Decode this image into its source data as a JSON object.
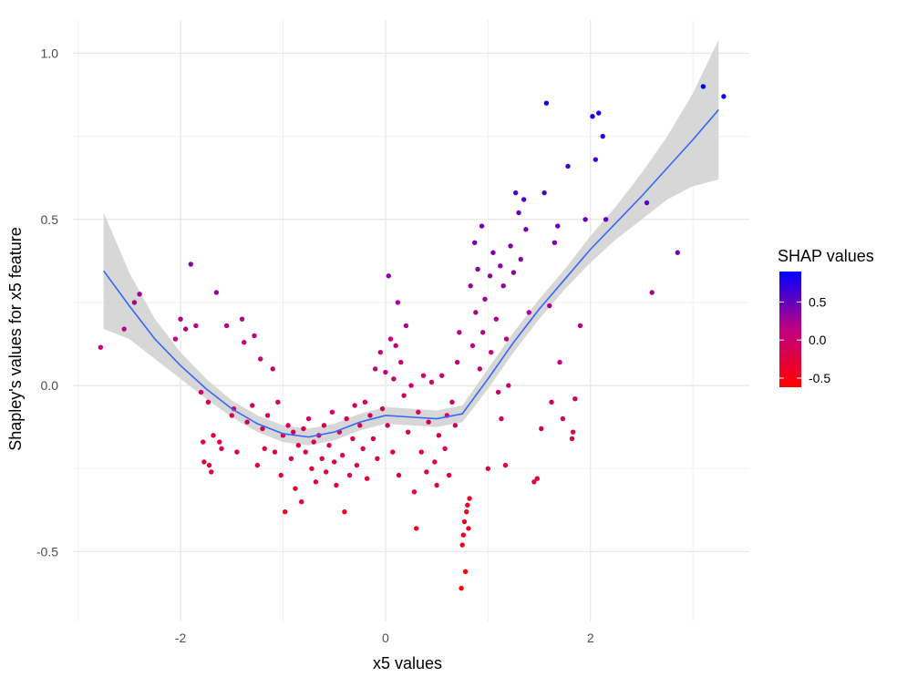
{
  "chart_data": {
    "type": "scatter",
    "xlabel": "x5 values",
    "ylabel": "Shapley's values for x5 feature",
    "xlim": [
      -3.05,
      3.55
    ],
    "ylim": [
      -0.71,
      1.1
    ],
    "x_ticks": [
      -2,
      0,
      2
    ],
    "x_tick_labels": [
      "-2",
      "0",
      "2"
    ],
    "y_ticks": [
      -0.5,
      0.0,
      0.5,
      1.0
    ],
    "y_tick_labels": [
      "-0.5",
      "0.0",
      "0.5",
      "1.0"
    ],
    "grid": true,
    "legend": {
      "title": "SHAP values",
      "placement": "right",
      "ticks": [
        0.5,
        0.0,
        -0.5
      ],
      "tick_labels": [
        "0.5",
        "0.0",
        "-0.5"
      ],
      "range": [
        -0.62,
        0.9
      ],
      "color_low": "#ff0000",
      "color_mid": "#c00080",
      "color_high": "#0000ff"
    },
    "smooth_color": "#3366ff",
    "band_color": "#d3d3d3",
    "smooth": [
      {
        "x": -2.75,
        "y": 0.345,
        "lo": 0.17,
        "hi": 0.52
      },
      {
        "x": -2.5,
        "y": 0.24,
        "lo": 0.14,
        "hi": 0.34
      },
      {
        "x": -2.25,
        "y": 0.14,
        "lo": 0.08,
        "hi": 0.2
      },
      {
        "x": -2.0,
        "y": 0.06,
        "lo": 0.02,
        "hi": 0.1
      },
      {
        "x": -1.75,
        "y": -0.01,
        "lo": -0.04,
        "hi": 0.02
      },
      {
        "x": -1.5,
        "y": -0.07,
        "lo": -0.095,
        "hi": -0.045
      },
      {
        "x": -1.25,
        "y": -0.115,
        "lo": -0.14,
        "hi": -0.09
      },
      {
        "x": -1.0,
        "y": -0.145,
        "lo": -0.17,
        "hi": -0.12
      },
      {
        "x": -0.75,
        "y": -0.155,
        "lo": -0.18,
        "hi": -0.13
      },
      {
        "x": -0.5,
        "y": -0.14,
        "lo": -0.165,
        "hi": -0.115
      },
      {
        "x": -0.25,
        "y": -0.11,
        "lo": -0.135,
        "hi": -0.085
      },
      {
        "x": 0.0,
        "y": -0.09,
        "lo": -0.115,
        "hi": -0.065
      },
      {
        "x": 0.25,
        "y": -0.095,
        "lo": -0.12,
        "hi": -0.07
      },
      {
        "x": 0.5,
        "y": -0.1,
        "lo": -0.125,
        "hi": -0.075
      },
      {
        "x": 0.75,
        "y": -0.085,
        "lo": -0.11,
        "hi": -0.06
      },
      {
        "x": 1.0,
        "y": 0.02,
        "lo": -0.01,
        "hi": 0.05
      },
      {
        "x": 1.25,
        "y": 0.13,
        "lo": 0.1,
        "hi": 0.16
      },
      {
        "x": 1.5,
        "y": 0.23,
        "lo": 0.2,
        "hi": 0.26
      },
      {
        "x": 1.75,
        "y": 0.32,
        "lo": 0.29,
        "hi": 0.35
      },
      {
        "x": 2.0,
        "y": 0.41,
        "lo": 0.37,
        "hi": 0.45
      },
      {
        "x": 2.25,
        "y": 0.49,
        "lo": 0.44,
        "hi": 0.54
      },
      {
        "x": 2.5,
        "y": 0.57,
        "lo": 0.5,
        "hi": 0.64
      },
      {
        "x": 2.75,
        "y": 0.655,
        "lo": 0.56,
        "hi": 0.75
      },
      {
        "x": 3.0,
        "y": 0.74,
        "lo": 0.6,
        "hi": 0.88
      },
      {
        "x": 3.25,
        "y": 0.83,
        "lo": 0.62,
        "hi": 1.04
      }
    ],
    "points": [
      {
        "x": -2.78,
        "y": 0.115
      },
      {
        "x": -2.55,
        "y": 0.17
      },
      {
        "x": -2.45,
        "y": 0.25
      },
      {
        "x": -2.4,
        "y": 0.275
      },
      {
        "x": -2.05,
        "y": 0.14
      },
      {
        "x": -2.0,
        "y": 0.2
      },
      {
        "x": -1.95,
        "y": 0.17
      },
      {
        "x": -1.9,
        "y": 0.365
      },
      {
        "x": -1.85,
        "y": 0.18
      },
      {
        "x": -1.8,
        "y": -0.02
      },
      {
        "x": -1.78,
        "y": -0.17
      },
      {
        "x": -1.77,
        "y": -0.23
      },
      {
        "x": -1.73,
        "y": -0.05
      },
      {
        "x": -1.72,
        "y": -0.24
      },
      {
        "x": -1.7,
        "y": -0.26
      },
      {
        "x": -1.68,
        "y": -0.15
      },
      {
        "x": -1.65,
        "y": 0.28
      },
      {
        "x": -1.62,
        "y": -0.17
      },
      {
        "x": -1.6,
        "y": -0.19
      },
      {
        "x": -1.55,
        "y": 0.18
      },
      {
        "x": -1.5,
        "y": -0.09
      },
      {
        "x": -1.48,
        "y": -0.07
      },
      {
        "x": -1.45,
        "y": -0.2
      },
      {
        "x": -1.4,
        "y": 0.2
      },
      {
        "x": -1.38,
        "y": 0.13
      },
      {
        "x": -1.35,
        "y": -0.11
      },
      {
        "x": -1.3,
        "y": -0.06
      },
      {
        "x": -1.28,
        "y": 0.15
      },
      {
        "x": -1.25,
        "y": -0.24
      },
      {
        "x": -1.22,
        "y": 0.08
      },
      {
        "x": -1.2,
        "y": -0.13
      },
      {
        "x": -1.18,
        "y": -0.19
      },
      {
        "x": -1.15,
        "y": -0.09
      },
      {
        "x": -1.1,
        "y": 0.05
      },
      {
        "x": -1.08,
        "y": -0.2
      },
      {
        "x": -1.05,
        "y": -0.05
      },
      {
        "x": -1.02,
        "y": -0.27
      },
      {
        "x": -1.0,
        "y": -0.15
      },
      {
        "x": -0.98,
        "y": -0.38
      },
      {
        "x": -0.95,
        "y": -0.12
      },
      {
        "x": -0.92,
        "y": -0.22
      },
      {
        "x": -0.9,
        "y": -0.14
      },
      {
        "x": -0.88,
        "y": -0.31
      },
      {
        "x": -0.85,
        "y": -0.18
      },
      {
        "x": -0.82,
        "y": -0.35
      },
      {
        "x": -0.8,
        "y": -0.13
      },
      {
        "x": -0.78,
        "y": -0.2
      },
      {
        "x": -0.75,
        "y": -0.1
      },
      {
        "x": -0.72,
        "y": -0.25
      },
      {
        "x": -0.7,
        "y": -0.17
      },
      {
        "x": -0.68,
        "y": -0.29
      },
      {
        "x": -0.65,
        "y": -0.15
      },
      {
        "x": -0.62,
        "y": -0.22
      },
      {
        "x": -0.6,
        "y": -0.12
      },
      {
        "x": -0.58,
        "y": -0.26
      },
      {
        "x": -0.55,
        "y": -0.18
      },
      {
        "x": -0.52,
        "y": -0.08
      },
      {
        "x": -0.5,
        "y": -0.23
      },
      {
        "x": -0.48,
        "y": -0.3
      },
      {
        "x": -0.45,
        "y": -0.14
      },
      {
        "x": -0.42,
        "y": -0.21
      },
      {
        "x": -0.4,
        "y": -0.38
      },
      {
        "x": -0.38,
        "y": -0.1
      },
      {
        "x": -0.35,
        "y": -0.27
      },
      {
        "x": -0.32,
        "y": -0.16
      },
      {
        "x": -0.3,
        "y": -0.06
      },
      {
        "x": -0.28,
        "y": -0.24
      },
      {
        "x": -0.25,
        "y": -0.12
      },
      {
        "x": -0.22,
        "y": -0.19
      },
      {
        "x": -0.2,
        "y": -0.05
      },
      {
        "x": -0.18,
        "y": -0.28
      },
      {
        "x": -0.15,
        "y": -0.09
      },
      {
        "x": -0.12,
        "y": -0.16
      },
      {
        "x": -0.1,
        "y": 0.05
      },
      {
        "x": -0.08,
        "y": -0.22
      },
      {
        "x": -0.05,
        "y": 0.1
      },
      {
        "x": -0.03,
        "y": -0.07
      },
      {
        "x": 0.0,
        "y": 0.04
      },
      {
        "x": 0.02,
        "y": -0.12
      },
      {
        "x": 0.03,
        "y": 0.33
      },
      {
        "x": 0.05,
        "y": 0.14
      },
      {
        "x": 0.07,
        "y": -0.2
      },
      {
        "x": 0.08,
        "y": 0.02
      },
      {
        "x": 0.1,
        "y": 0.12
      },
      {
        "x": 0.12,
        "y": 0.25
      },
      {
        "x": 0.13,
        "y": -0.27
      },
      {
        "x": 0.15,
        "y": 0.07
      },
      {
        "x": 0.18,
        "y": -0.03
      },
      {
        "x": 0.2,
        "y": 0.18
      },
      {
        "x": 0.22,
        "y": -0.14
      },
      {
        "x": 0.25,
        "y": 0.0
      },
      {
        "x": 0.28,
        "y": -0.32
      },
      {
        "x": 0.3,
        "y": -0.43
      },
      {
        "x": 0.32,
        "y": -0.08
      },
      {
        "x": 0.35,
        "y": -0.2
      },
      {
        "x": 0.37,
        "y": 0.03
      },
      {
        "x": 0.4,
        "y": -0.26
      },
      {
        "x": 0.42,
        "y": -0.11
      },
      {
        "x": 0.45,
        "y": 0.01
      },
      {
        "x": 0.48,
        "y": -0.23
      },
      {
        "x": 0.5,
        "y": -0.3
      },
      {
        "x": 0.52,
        "y": -0.15
      },
      {
        "x": 0.55,
        "y": 0.03
      },
      {
        "x": 0.58,
        "y": -0.19
      },
      {
        "x": 0.6,
        "y": -0.09
      },
      {
        "x": 0.62,
        "y": -0.27
      },
      {
        "x": 0.65,
        "y": -0.05
      },
      {
        "x": 0.68,
        "y": -0.12
      },
      {
        "x": 0.7,
        "y": 0.07
      },
      {
        "x": 0.72,
        "y": 0.16
      },
      {
        "x": 0.74,
        "y": -0.61
      },
      {
        "x": 0.75,
        "y": -0.48
      },
      {
        "x": 0.76,
        "y": -0.45
      },
      {
        "x": 0.77,
        "y": -0.41
      },
      {
        "x": 0.78,
        "y": -0.56
      },
      {
        "x": 0.79,
        "y": -0.38
      },
      {
        "x": 0.8,
        "y": -0.36
      },
      {
        "x": 0.81,
        "y": -0.43
      },
      {
        "x": 0.82,
        "y": -0.34
      },
      {
        "x": 0.83,
        "y": 0.3
      },
      {
        "x": 0.85,
        "y": 0.12
      },
      {
        "x": 0.87,
        "y": 0.43
      },
      {
        "x": 0.88,
        "y": 0.22
      },
      {
        "x": 0.9,
        "y": 0.35
      },
      {
        "x": 0.92,
        "y": 0.05
      },
      {
        "x": 0.94,
        "y": 0.48
      },
      {
        "x": 0.95,
        "y": 0.16
      },
      {
        "x": 0.97,
        "y": 0.26
      },
      {
        "x": 1.0,
        "y": -0.25
      },
      {
        "x": 1.02,
        "y": 0.33
      },
      {
        "x": 1.03,
        "y": 0.1
      },
      {
        "x": 1.05,
        "y": 0.4
      },
      {
        "x": 1.08,
        "y": 0.2
      },
      {
        "x": 1.1,
        "y": -0.02
      },
      {
        "x": 1.12,
        "y": 0.36
      },
      {
        "x": 1.13,
        "y": -0.1
      },
      {
        "x": 1.15,
        "y": 0.3
      },
      {
        "x": 1.17,
        "y": -0.24
      },
      {
        "x": 1.18,
        "y": 0.14
      },
      {
        "x": 1.2,
        "y": 0.0
      },
      {
        "x": 1.22,
        "y": 0.42
      },
      {
        "x": 1.25,
        "y": 0.34
      },
      {
        "x": 1.27,
        "y": 0.58
      },
      {
        "x": 1.3,
        "y": 0.52
      },
      {
        "x": 1.32,
        "y": 0.38
      },
      {
        "x": 1.35,
        "y": 0.56
      },
      {
        "x": 1.37,
        "y": 0.47
      },
      {
        "x": 1.4,
        "y": 0.22
      },
      {
        "x": 1.45,
        "y": -0.29
      },
      {
        "x": 1.48,
        "y": -0.28
      },
      {
        "x": 1.52,
        "y": -0.13
      },
      {
        "x": 1.55,
        "y": 0.58
      },
      {
        "x": 1.57,
        "y": 0.85
      },
      {
        "x": 1.6,
        "y": 0.24
      },
      {
        "x": 1.62,
        "y": -0.05
      },
      {
        "x": 1.65,
        "y": 0.43
      },
      {
        "x": 1.68,
        "y": 0.48
      },
      {
        "x": 1.7,
        "y": 0.07
      },
      {
        "x": 1.73,
        "y": -0.1
      },
      {
        "x": 1.78,
        "y": 0.66
      },
      {
        "x": 1.82,
        "y": -0.16
      },
      {
        "x": 1.83,
        "y": -0.14
      },
      {
        "x": 1.85,
        "y": -0.04
      },
      {
        "x": 1.9,
        "y": 0.18
      },
      {
        "x": 1.95,
        "y": 0.5
      },
      {
        "x": 2.02,
        "y": 0.81
      },
      {
        "x": 2.05,
        "y": 0.68
      },
      {
        "x": 2.08,
        "y": 0.82
      },
      {
        "x": 2.12,
        "y": 0.75
      },
      {
        "x": 2.15,
        "y": 0.5
      },
      {
        "x": 2.55,
        "y": 0.55
      },
      {
        "x": 2.6,
        "y": 0.28
      },
      {
        "x": 2.85,
        "y": 0.4
      },
      {
        "x": 3.1,
        "y": 0.9
      },
      {
        "x": 3.3,
        "y": 0.87
      }
    ]
  }
}
